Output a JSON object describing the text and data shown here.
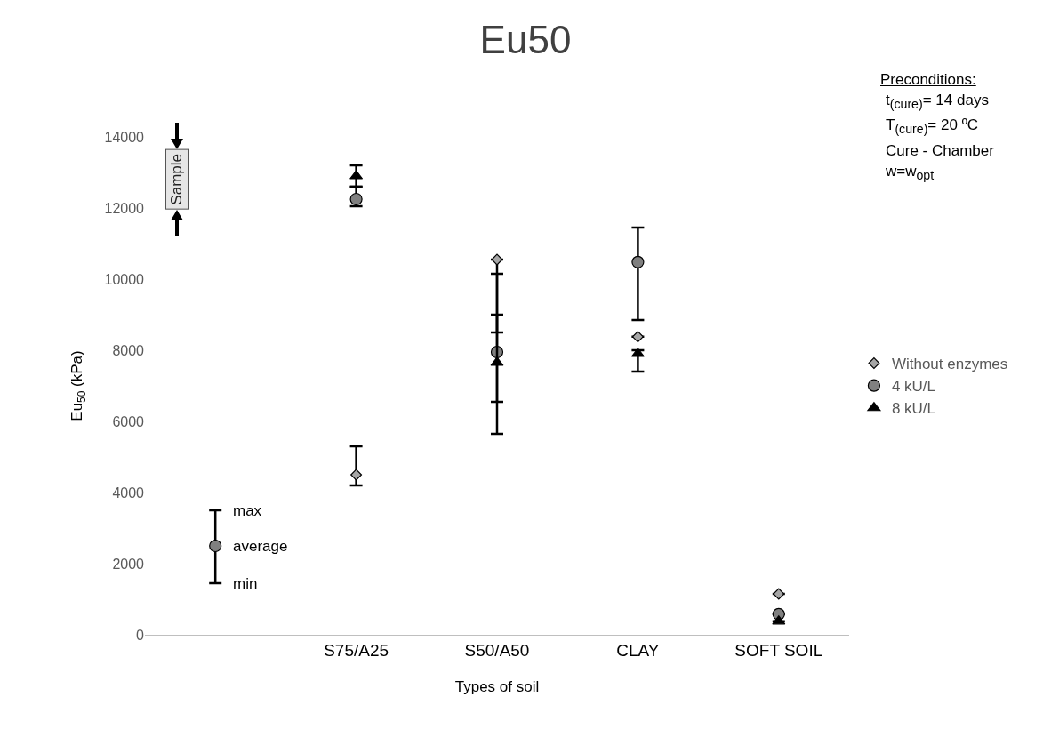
{
  "chart_data": {
    "type": "scatter",
    "title": "Eu50",
    "xlabel": "Types of soil",
    "ylabel": "Eu$_{50}$ (kPa)",
    "categories": [
      null,
      "S75/A25",
      "S50/A50",
      "CLAY",
      "SOFT SOIL"
    ],
    "series": [
      {
        "name": "Without enzymes",
        "color": "#a6a6a6",
        "marker": "diamond",
        "values": [
          null,
          4500,
          10550,
          8380,
          1150
        ],
        "errors": [
          null,
          [
            4200,
            5300
          ],
          [
            8500,
            10550
          ],
          null,
          null
        ]
      },
      {
        "name": "4 kU/L",
        "color": "#808080",
        "marker": "circle",
        "values": [
          null,
          12250,
          7950,
          10480,
          580
        ],
        "errors": [
          null,
          [
            12050,
            12600
          ],
          [
            5650,
            10150
          ],
          [
            8850,
            11450
          ],
          null
        ]
      },
      {
        "name": "8 kU/L",
        "color": "#000000",
        "marker": "triangle",
        "values": [
          null,
          12900,
          7650,
          7900,
          380
        ],
        "errors": [
          null,
          [
            12600,
            13200
          ],
          [
            6550,
            9000
          ],
          [
            7400,
            8000
          ],
          null
        ]
      },
      {
        "color": "#808080",
        "marker": "circle",
        "values": [
          2500,
          null,
          null,
          null,
          null
        ],
        "errors": [
          [
            1450,
            3500
          ],
          null,
          null,
          null,
          null
        ]
      }
    ],
    "ylim": [
      0,
      14000
    ],
    "yticks": [
      0,
      2000,
      4000,
      6000,
      8000,
      10000,
      12000,
      14000
    ],
    "grid": false,
    "legend": "right",
    "annotations": [
      "Sample",
      "Preconditions:",
      "t$_{(cure)}$= 14 days",
      "T$_{(cure)}$= 20 ºC",
      "Cure - Chamber",
      "w=w$_{opt}$",
      "max",
      "average",
      "min"
    ]
  }
}
